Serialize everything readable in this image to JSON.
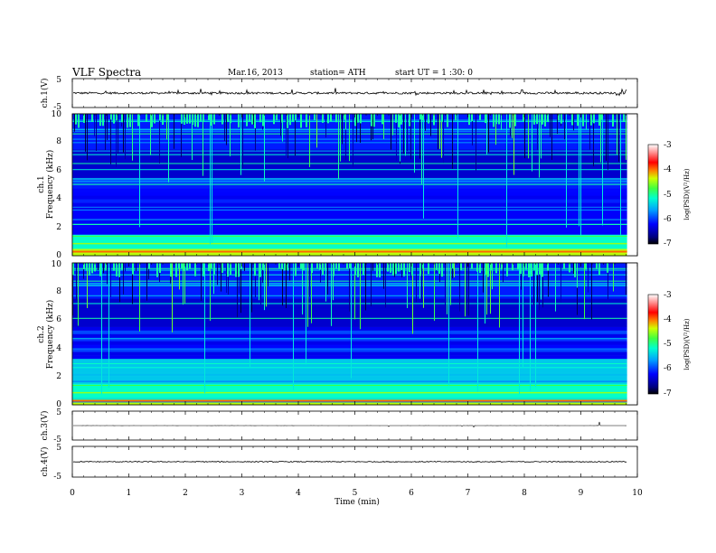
{
  "header": {
    "title": "VLF  Spectra",
    "date": "Mar.16, 2013",
    "station": "station= ATH",
    "start": "start  UT  =   1  :30: 0"
  },
  "chart_data": [
    {
      "type": "line",
      "name": "ch1-waveform",
      "ylabel": "ch.1(V)",
      "ylim": [
        -5,
        5
      ],
      "ticks": [
        "5",
        "-5"
      ],
      "baseline": 0,
      "amplitude": 0.35
    },
    {
      "type": "heatmap",
      "name": "ch1-spectrogram",
      "ylabel_channel": "ch.1",
      "ylabel": "Frequency  (kHz)",
      "ylim": [
        0,
        10
      ],
      "yticks": [
        "0",
        "2",
        "4",
        "6",
        "8",
        "10"
      ],
      "colorbar": {
        "label": "log(PSD)(V²/Hz)",
        "range": [
          -7,
          -3
        ],
        "ticks": [
          "-3",
          "-4",
          "-5",
          "-6",
          "-7"
        ]
      }
    },
    {
      "type": "heatmap",
      "name": "ch2-spectrogram",
      "ylabel_channel": "ch.2",
      "ylabel": "Frequency  (kHz)",
      "ylim": [
        0,
        10
      ],
      "yticks": [
        "0",
        "2",
        "4",
        "6",
        "8",
        "10"
      ],
      "colorbar": {
        "label": "log(PSD)(V²/Hz)",
        "range": [
          -7,
          -3
        ],
        "ticks": [
          "-3",
          "-4",
          "-5",
          "-6",
          "-7"
        ]
      }
    },
    {
      "type": "line",
      "name": "ch3-waveform",
      "ylabel": "ch.3(V)",
      "ylim": [
        -5,
        5
      ],
      "ticks": [
        "5",
        "-5"
      ],
      "baseline": 0,
      "amplitude": 0.02
    },
    {
      "type": "line",
      "name": "ch4-waveform",
      "ylabel": "ch.4(V)",
      "ylim": [
        -5,
        5
      ],
      "ticks": [
        "5",
        "-5"
      ],
      "baseline": 0,
      "amplitude": 0.15
    }
  ],
  "time_axis": {
    "label": "Time  (min)",
    "range": [
      0,
      10
    ],
    "data_end": 9.82,
    "ticks": [
      "0",
      "1",
      "2",
      "3",
      "4",
      "5",
      "6",
      "7",
      "8",
      "9",
      "10"
    ]
  }
}
